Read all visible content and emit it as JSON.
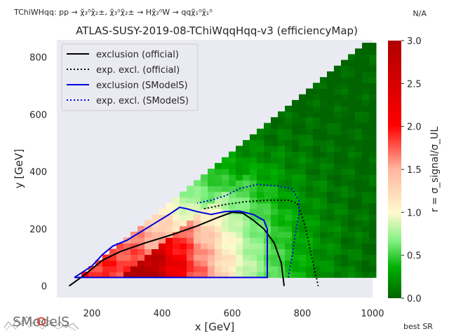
{
  "header": {
    "process": "TChiWHqq: pp → χ̃₃⁰χ̃₂±, χ̃₃⁰χ̃₂± → Hχ̃₂⁰W → qqχ̃₁⁰χ̃₁⁰",
    "na": "N/A",
    "best_sr": "best SR",
    "logo_text": "SModelS"
  },
  "chart_data": {
    "type": "heatmap",
    "title": "ATLAS-SUSY-2019-08-TChiWqqHqq-v3 (efficiencyMap)",
    "xlabel": "x [GeV]",
    "ylabel": "y [GeV]",
    "xlim": [
      100,
      1000
    ],
    "ylim": [
      -40,
      860
    ],
    "x_ticks": [
      200,
      400,
      600,
      800,
      1000
    ],
    "y_ticks": [
      0,
      200,
      400,
      600,
      800
    ],
    "grid": false,
    "background": "#eaeaf2",
    "legend_position": "top-left",
    "legend": [
      {
        "label": "exclusion (official)",
        "color": "#000000",
        "style": "solid"
      },
      {
        "label": "exp. excl. (official)",
        "color": "#000000",
        "style": "dotted"
      },
      {
        "label": "exclusion (SModelS)",
        "color": "#0000dd",
        "style": "solid"
      },
      {
        "label": "exp. excl. (SModelS)",
        "color": "#0000dd",
        "style": "dotted"
      }
    ],
    "colorbar": {
      "label": "r = σ_signal/σ_UL",
      "range": [
        0.0,
        3.0
      ],
      "ticks": [
        "0.0",
        "0.5",
        "1.0",
        "1.5",
        "2.0",
        "2.5",
        "3.0"
      ],
      "colors": [
        "#006400",
        "#00b000",
        "#80f080",
        "#fffacd",
        "#ffb6a0",
        "#ff0000",
        "#b00000"
      ]
    },
    "heatmap_bins": {
      "x_step": 20,
      "y_step": 20,
      "x_min": 150,
      "x_max": 1000,
      "y_min": 30,
      "upper_edge": "y <= x - 140"
    },
    "series": [
      {
        "name": "exclusion (official)",
        "color": "#000000",
        "style": "solid",
        "points": [
          [
            135,
            0
          ],
          [
            180,
            40
          ],
          [
            230,
            90
          ],
          [
            280,
            120
          ],
          [
            350,
            150
          ],
          [
            430,
            180
          ],
          [
            500,
            210
          ],
          [
            560,
            240
          ],
          [
            600,
            258
          ],
          [
            630,
            255
          ],
          [
            660,
            230
          ],
          [
            690,
            200
          ],
          [
            720,
            150
          ],
          [
            740,
            80
          ],
          [
            748,
            0
          ]
        ]
      },
      {
        "name": "exp. excl. (official)",
        "color": "#000000",
        "style": "dotted",
        "points": [
          [
            520,
            270
          ],
          [
            580,
            285
          ],
          [
            640,
            295
          ],
          [
            700,
            300
          ],
          [
            760,
            300
          ],
          [
            785,
            290
          ],
          [
            800,
            240
          ],
          [
            810,
            200
          ],
          [
            825,
            110
          ],
          [
            840,
            30
          ],
          [
            845,
            0
          ]
        ]
      },
      {
        "name": "exclusion (SModelS)",
        "color": "#0000dd",
        "style": "solid",
        "points": [
          [
            150,
            30
          ],
          [
            200,
            70
          ],
          [
            230,
            110
          ],
          [
            260,
            140
          ],
          [
            300,
            160
          ],
          [
            340,
            190
          ],
          [
            380,
            220
          ],
          [
            420,
            250
          ],
          [
            450,
            275
          ],
          [
            470,
            270
          ],
          [
            500,
            260
          ],
          [
            540,
            250
          ],
          [
            580,
            260
          ],
          [
            620,
            262
          ],
          [
            660,
            250
          ],
          [
            690,
            230
          ],
          [
            700,
            200
          ],
          [
            700,
            30
          ],
          [
            400,
            30
          ],
          [
            150,
            30
          ]
        ]
      },
      {
        "name": "exp. excl. (SModelS)",
        "color": "#0000dd",
        "style": "dotted",
        "points": [
          [
            760,
            30
          ],
          [
            770,
            100
          ],
          [
            780,
            180
          ],
          [
            790,
            250
          ],
          [
            790,
            300
          ],
          [
            770,
            340
          ],
          [
            730,
            350
          ],
          [
            670,
            355
          ],
          [
            620,
            340
          ],
          [
            580,
            315
          ],
          [
            540,
            300
          ],
          [
            500,
            290
          ]
        ]
      }
    ]
  }
}
